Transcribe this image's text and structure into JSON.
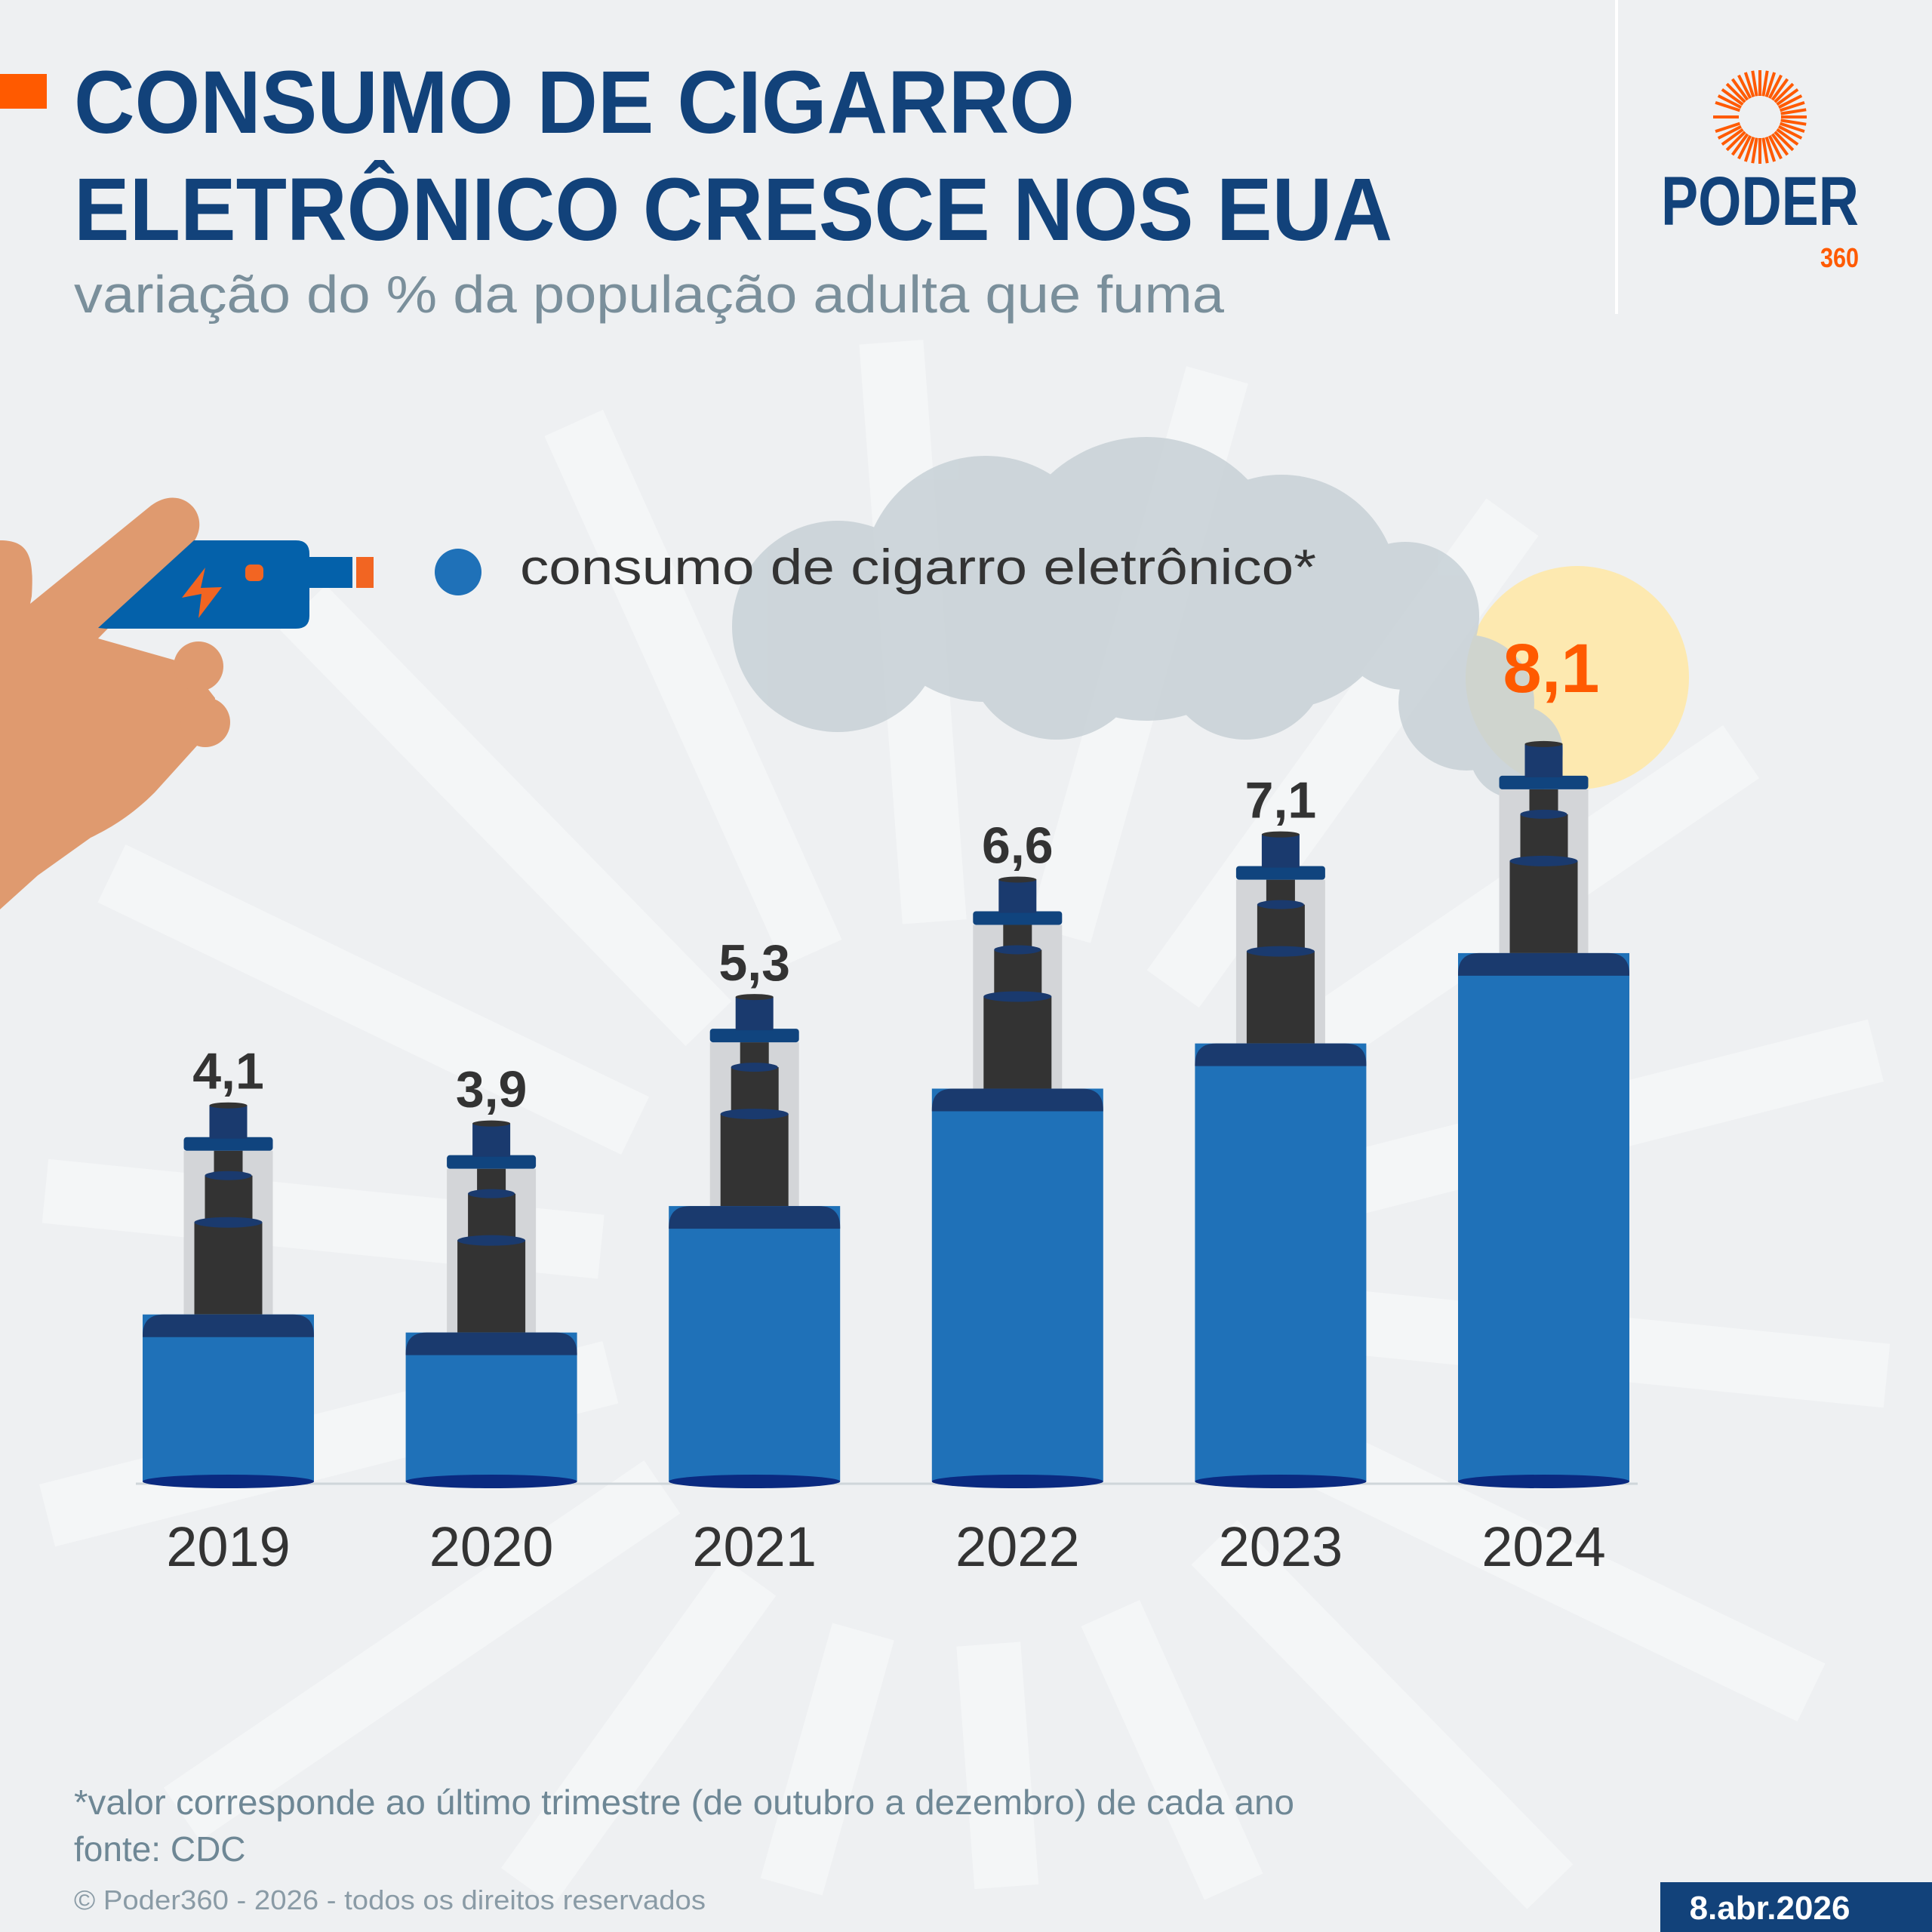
{
  "header": {
    "title_line1": "CONSUMO DE CIGARRO",
    "title_line2": "ELETRÔNICO CRESCE NOS EUA",
    "subtitle": "variação do % da população adulta que fuma"
  },
  "logo": {
    "name": "PODER",
    "suffix": "360"
  },
  "legend": {
    "label": "consumo de cigarro eletrônico*",
    "color": "#1f71b8"
  },
  "chart_data": {
    "type": "bar",
    "title": "CONSUMO DE CIGARRO ELETRÔNICO CRESCE NOS EUA",
    "subtitle": "variação do % da população adulta que fuma",
    "categories": [
      "2019",
      "2020",
      "2021",
      "2022",
      "2023",
      "2024"
    ],
    "series": [
      {
        "name": "consumo de cigarro eletrônico*",
        "values": [
          4.1,
          3.9,
          5.3,
          6.6,
          7.1,
          8.1
        ],
        "labels": [
          "4,1",
          "3,9",
          "5,3",
          "6,6",
          "7,1",
          "8,1"
        ]
      }
    ],
    "highlight": {
      "category": "2024",
      "color": "#ff5a00"
    },
    "grid": false,
    "legend_position": "top-left"
  },
  "colors": {
    "title": "#12427a",
    "accent": "#ff5a00",
    "bar": "#1f71b8",
    "bar_cap": "#1a3a6e",
    "highlight_bg": "#fde9b0"
  },
  "footer": {
    "note": "*valor corresponde ao último trimestre (de outubro a dezembro) de cada ano",
    "source": "fonte: CDC",
    "copyright": "© Poder360 - 2026 - todos os direitos reservados",
    "date": "8.abr.2026"
  }
}
